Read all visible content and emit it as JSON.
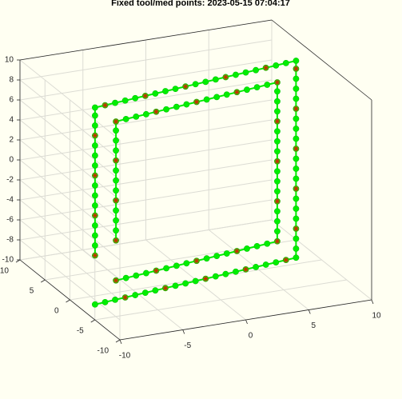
{
  "chart_data": {
    "type": "scatter3d-line",
    "title": "Fixed tool/med points: 2023-05-15 07:04:17",
    "xlim": [
      -10,
      10
    ],
    "ylim": [
      -10,
      10
    ],
    "zlim": [
      -10,
      10
    ],
    "xticks": [
      -10,
      -5,
      0,
      5,
      10
    ],
    "yticks": [
      -10,
      -5,
      0,
      5,
      10
    ],
    "zticks": [
      -10,
      -8,
      -6,
      -4,
      -2,
      0,
      2,
      4,
      6,
      8,
      10
    ],
    "grid": true,
    "color": "#00ee00",
    "star_color": "#c83200",
    "star_every": 4,
    "series": [
      {
        "x": [
          -8.8,
          -8.8,
          -8.8,
          -8.8,
          -8.8,
          -8.8,
          -8.8,
          -8.8,
          -8.8,
          -8.8,
          -8.8,
          -8.8,
          -8.8,
          -8.8,
          -8.8,
          -8.8,
          -7.94,
          -7.08,
          -6.22,
          -5.36,
          -4.5,
          -3.64,
          -2.78,
          -1.92,
          -1.06,
          -0.2,
          0.66,
          1.52,
          2.38,
          3.24,
          4.1,
          4.96,
          5.82,
          6.68,
          7.54,
          8.4,
          8.4,
          8.4,
          8.4,
          8.4,
          8.4,
          8.4,
          8.4,
          8.4,
          8.4,
          8.4,
          8.4,
          8.4,
          8.4,
          8.4,
          8.4,
          8.4,
          8.4,
          8.4,
          8.4,
          8.4,
          7.54,
          6.68,
          5.82,
          4.96,
          4.1,
          3.24,
          2.38,
          1.52,
          0.66,
          -0.2,
          -1.06,
          -1.92,
          -2.78,
          -3.64,
          -4.5,
          -5.36,
          -6.22,
          -7.08,
          -7.94,
          -8.8
        ],
        "y": [
          -2,
          -2,
          -2,
          -2,
          -2,
          -2,
          -2,
          -2,
          -2,
          -2,
          -2,
          -2,
          -2,
          -2,
          -2,
          -2,
          -1.85,
          -1.69,
          -1.54,
          -1.38,
          -1.23,
          -1.07,
          -0.92,
          -0.76,
          -0.61,
          -0.45,
          -0.3,
          -0.14,
          0.02,
          0.17,
          0.33,
          0.48,
          0.64,
          0.79,
          0.95,
          1.1,
          1.1,
          1.1,
          1.1,
          1.1,
          1.1,
          1.1,
          1.1,
          1.1,
          1.1,
          1.1,
          1.1,
          1.1,
          1.1,
          1.1,
          1.1,
          1.1,
          1.1,
          1.1,
          1.1,
          1.1,
          0.95,
          0.79,
          0.64,
          0.48,
          0.33,
          0.17,
          0.02,
          -0.14,
          -0.3,
          -0.45,
          -0.61,
          -0.76,
          -0.92,
          -1.07,
          -1.23,
          -1.38,
          -1.54,
          -1.69,
          -1.85,
          -2
        ],
        "z": [
          -5,
          -4,
          -3,
          -2,
          -1,
          0,
          1,
          2,
          3,
          4,
          5,
          6,
          7,
          8,
          9,
          9.8,
          9.8,
          9.8,
          9.8,
          9.8,
          9.8,
          9.8,
          9.8,
          9.8,
          9.8,
          9.8,
          9.8,
          9.8,
          9.8,
          9.8,
          9.8,
          9.8,
          9.8,
          9.8,
          9.8,
          9.8,
          9,
          8,
          7,
          6,
          5,
          4,
          3,
          2,
          1,
          0,
          -1,
          -2,
          -3,
          -4,
          -5,
          -6,
          -7,
          -8,
          -9,
          -9.9,
          -9.9,
          -9.9,
          -9.9,
          -9.9,
          -9.9,
          -9.9,
          -9.9,
          -9.9,
          -9.9,
          -9.9,
          -9.9,
          -9.9,
          -9.9,
          -9.9,
          -9.9,
          -9.9,
          -9.9,
          -9.9,
          -9.9,
          -9.9
        ]
      },
      {
        "x": [
          -7,
          -7,
          -7,
          -7,
          -7,
          -7,
          -7,
          -7,
          -7,
          -7,
          -7,
          -7,
          -7,
          -6.13,
          -5.26,
          -4.39,
          -3.52,
          -2.65,
          -1.77,
          -0.9,
          -0.03,
          0.84,
          1.71,
          2.58,
          3.45,
          4.32,
          5.19,
          6.07,
          6.94,
          6.94,
          6.94,
          6.94,
          6.94,
          6.94,
          6.94,
          6.94,
          6.94,
          6.94,
          6.94,
          6.94,
          6.94,
          6.94,
          6.94,
          6.94,
          6.94,
          6.07,
          5.19,
          4.32,
          3.45,
          2.58,
          1.71,
          0.84,
          -0.03,
          -0.9,
          -1.77,
          -2.65,
          -3.52,
          -4.39,
          -5.26,
          -6.13,
          -7
        ],
        "y": [
          -1.65,
          -1.65,
          -1.65,
          -1.65,
          -1.65,
          -1.65,
          -1.65,
          -1.65,
          -1.65,
          -1.65,
          -1.65,
          -1.65,
          -1.65,
          -1.47,
          -1.3,
          -1.12,
          -0.94,
          -0.77,
          -0.59,
          -0.41,
          -0.23,
          -0.06,
          0.12,
          0.3,
          0.47,
          0.65,
          0.83,
          1.01,
          1.18,
          1.18,
          1.18,
          1.18,
          1.18,
          1.18,
          1.18,
          1.18,
          1.18,
          1.18,
          1.18,
          1.18,
          1.18,
          1.18,
          1.18,
          1.18,
          1.18,
          1.01,
          0.83,
          0.65,
          0.47,
          0.3,
          0.12,
          -0.06,
          -0.23,
          -0.41,
          -0.59,
          -0.77,
          -0.94,
          -1.12,
          -1.3,
          -1.47,
          -1.65
        ],
        "z": [
          -4,
          -3,
          -2,
          -1,
          0,
          1,
          2,
          3,
          4,
          5,
          6,
          7,
          7.9,
          7.9,
          7.9,
          7.9,
          7.9,
          7.9,
          7.9,
          7.9,
          7.9,
          7.9,
          7.9,
          7.9,
          7.9,
          7.9,
          7.9,
          7.9,
          7.9,
          7,
          6,
          5,
          4,
          3,
          2,
          1,
          0,
          -1,
          -2,
          -3,
          -4,
          -5,
          -6,
          -7,
          -8,
          -8,
          -8,
          -8,
          -8,
          -8,
          -8,
          -8,
          -8,
          -8,
          -8,
          -8,
          -8,
          -8,
          -8,
          -8,
          -8
        ]
      }
    ]
  }
}
